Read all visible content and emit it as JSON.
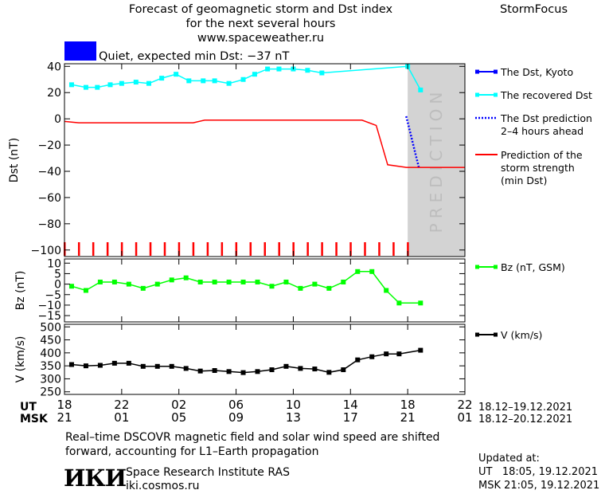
{
  "header": {
    "title_line1": "Forecast of geomagnetic storm and Dst index",
    "title_line2": "for the next several hours",
    "title_line3": "www.spaceweather.ru",
    "brand": "StormFocus",
    "status_color": "#0000ff",
    "status_text": "Quiet, expected min Dst: −37 nT"
  },
  "footer": {
    "note_line1": "Real–time DSCOVR magnetic field and solar wind speed are shifted",
    "note_line2": "forward, accounting for L1–Earth propagation",
    "logo_text": "ИКИ",
    "institute_name": "Space Research Institute RAS",
    "institute_site": "iki.cosmos.ru",
    "updated_label": "Updated at:",
    "updated_ut": "UT   18:05, 19.12.2021",
    "updated_msk": "MSK 21:05, 19.12.2021"
  },
  "chart_data": [
    {
      "type": "line",
      "panel": "dst",
      "ylabel": "Dst (nT)",
      "ylim": [
        -105,
        42
      ],
      "yticks": [
        "40",
        "20",
        "0",
        "−20",
        "−40",
        "−60",
        "−80",
        "−100"
      ],
      "ytick_values": [
        40,
        20,
        0,
        -20,
        -40,
        -60,
        -80,
        -100
      ],
      "x_unit": "hours since 18 UT, 18.12.2021",
      "xlim": [
        0,
        28
      ],
      "prediction_band": {
        "x_start": 24,
        "x_end": 28,
        "label": "PREDICTION",
        "color": "#d3d3d3"
      },
      "hour_marks": [
        0,
        1,
        2,
        3,
        4,
        5,
        6,
        7,
        8,
        9,
        10,
        11,
        12,
        13,
        14,
        15,
        16,
        17,
        18,
        19,
        20,
        21,
        22,
        23,
        24
      ],
      "series": [
        {
          "name": "The Dst, Kyoto",
          "color": "#0000ff",
          "style": "solid",
          "x": [],
          "y": []
        },
        {
          "name": "The recovered Dst",
          "color": "#00ffff",
          "style": "solid-markers",
          "x": [
            0.5,
            1.5,
            2.3,
            3.2,
            4.0,
            5.0,
            5.9,
            6.8,
            7.8,
            8.7,
            9.7,
            10.5,
            11.5,
            12.5,
            13.3,
            14.2,
            15.0,
            16.0,
            17.0,
            18.0,
            24.0,
            24.9
          ],
          "y": [
            26,
            24,
            24,
            26,
            27,
            28,
            27,
            31,
            34,
            29,
            29,
            29,
            27,
            30,
            34,
            38,
            38,
            38,
            37,
            35,
            40,
            22
          ]
        },
        {
          "name": "The Dst prediction\n2–4 hours ahead",
          "color": "#0000ff",
          "style": "dotted",
          "x": [
            23.9,
            24.8
          ],
          "y": [
            2,
            -38
          ]
        },
        {
          "name": "Prediction of the\nstorm strength\n(min Dst)",
          "color": "#ff0000",
          "style": "solid",
          "x": [
            0,
            1,
            9,
            9.8,
            20.8,
            21.8,
            22.6,
            23.9,
            28
          ],
          "y": [
            -2,
            -3,
            -3,
            -1,
            -1,
            -5,
            -35,
            -37,
            -37
          ]
        }
      ]
    },
    {
      "type": "line",
      "panel": "bz",
      "ylabel": "Bz (nT)",
      "ylim": [
        -18,
        12
      ],
      "yticks": [
        "10",
        "5",
        "0",
        "−5",
        "−10",
        "−15"
      ],
      "ytick_values": [
        10,
        5,
        0,
        -5,
        -10,
        -15
      ],
      "xlim": [
        0,
        28
      ],
      "series": [
        {
          "name": "Bz (nT, GSM)",
          "color": "#00ff00",
          "x": [
            0.5,
            1.5,
            2.5,
            3.5,
            4.5,
            5.5,
            6.5,
            7.5,
            8.5,
            9.5,
            10.5,
            11.5,
            12.5,
            13.5,
            14.5,
            15.5,
            16.5,
            17.5,
            18.5,
            19.5,
            20.5,
            21.5,
            22.5,
            23.4,
            24.9
          ],
          "y": [
            -1,
            -3,
            1,
            1,
            0,
            -2,
            0,
            2,
            3,
            1,
            1,
            1,
            1,
            1,
            -1,
            1,
            -2,
            0,
            -2,
            1,
            6,
            6,
            -3,
            -9,
            -9
          ]
        }
      ]
    },
    {
      "type": "line",
      "panel": "v",
      "ylabel": "V (km/s)",
      "ylim": [
        240,
        510
      ],
      "yticks": [
        "500",
        "450",
        "400",
        "350",
        "300",
        "250"
      ],
      "ytick_values": [
        500,
        450,
        400,
        350,
        300,
        250
      ],
      "xlim": [
        0,
        28
      ],
      "series": [
        {
          "name": "V (km/s)",
          "color": "#000000",
          "x": [
            0.5,
            1.5,
            2.5,
            3.5,
            4.5,
            5.5,
            6.5,
            7.5,
            8.5,
            9.5,
            10.5,
            11.5,
            12.5,
            13.5,
            14.5,
            15.5,
            16.5,
            17.5,
            18.5,
            19.5,
            20.5,
            21.5,
            22.5,
            23.4,
            24.9
          ],
          "y": [
            355,
            350,
            352,
            360,
            360,
            348,
            348,
            348,
            340,
            330,
            332,
            328,
            324,
            328,
            335,
            348,
            340,
            338,
            325,
            335,
            373,
            385,
            396,
            396,
            410
          ]
        }
      ]
    }
  ],
  "x_axis": {
    "ut_label": "UT",
    "msk_label": "MSK",
    "ut_ticks": [
      "18",
      "22",
      "02",
      "06",
      "10",
      "14",
      "18",
      "22"
    ],
    "msk_ticks": [
      "21",
      "01",
      "05",
      "09",
      "13",
      "17",
      "21",
      "01"
    ],
    "tick_hours": [
      0,
      4,
      8,
      12,
      16,
      20,
      24,
      28
    ],
    "ut_range": "18.12–19.12.2021",
    "msk_range": "18.12–20.12.2021"
  }
}
